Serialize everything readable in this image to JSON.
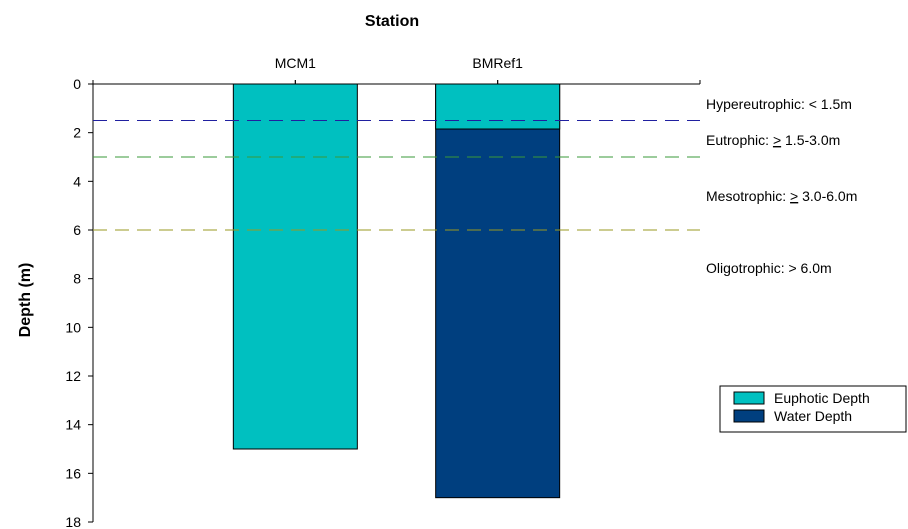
{
  "chart_data": {
    "type": "bar",
    "title": "Station",
    "xlabel": "",
    "ylabel": "Depth (m)",
    "categories": [
      "MCM1",
      "BMRef1"
    ],
    "series": [
      {
        "name": "Water Depth",
        "values": [
          null,
          17
        ],
        "color": "#003F7F"
      },
      {
        "name": "Euphotic Depth",
        "values": [
          15,
          1.85
        ],
        "color": "#00C0C0"
      }
    ],
    "ylim": [
      0,
      18
    ],
    "y_ticks": [
      "0",
      "2",
      "4",
      "6",
      "8",
      "10",
      "12",
      "14",
      "16",
      "18"
    ],
    "y_inverted": true,
    "x_axis_position": "top",
    "reference_lines": [
      {
        "y": 1.5,
        "label_prefix": "Hypereutrophic: ",
        "label_ge": "",
        "label_suffix": "< 1.5m",
        "color": "#2020A0"
      },
      {
        "y": 3.0,
        "label_prefix": "Eutrophic: ",
        "label_ge": ">",
        "label_suffix": " 1.5-3.0m",
        "color": "#3A9A3A"
      },
      {
        "y": 6.0,
        "label_prefix": "Mesotrophic: ",
        "label_ge": ">",
        "label_suffix": " 3.0-6.0m",
        "color": "#9A9A20"
      },
      {
        "y": null,
        "label_prefix": "Oligotrophic: ",
        "label_ge": "",
        "label_suffix": "> 6.0m",
        "color": "#000000"
      }
    ],
    "legend": {
      "position": "right",
      "items": [
        {
          "label": "Euphotic Depth",
          "color": "#00C0C0"
        },
        {
          "label": "Water Depth",
          "color": "#003F7F"
        }
      ]
    },
    "grid": false
  }
}
